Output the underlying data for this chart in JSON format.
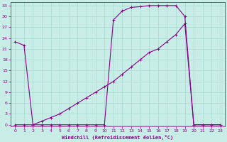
{
  "xlabel": "Windchill (Refroidissement éolien,°C)",
  "bg_color": "#c8ece6",
  "grid_color": "#a8d8d0",
  "line_color": "#880088",
  "xlim": [
    -0.5,
    23.5
  ],
  "ylim": [
    -0.5,
    34
  ],
  "yticks": [
    0,
    3,
    6,
    9,
    12,
    15,
    18,
    21,
    24,
    27,
    30,
    33
  ],
  "xticks": [
    0,
    1,
    2,
    3,
    4,
    5,
    6,
    7,
    8,
    9,
    10,
    11,
    12,
    13,
    14,
    15,
    16,
    17,
    18,
    19,
    20,
    21,
    22,
    23
  ],
  "curve1_x": [
    0,
    1,
    2,
    3,
    4,
    5,
    6,
    7,
    8,
    9,
    10,
    11,
    12,
    13,
    14,
    15,
    16,
    17,
    18,
    19,
    20,
    21,
    22,
    23
  ],
  "curve1_y": [
    23,
    22,
    0,
    0,
    0,
    0,
    0,
    0,
    0,
    0,
    0,
    29,
    31.5,
    32.5,
    32.7,
    33,
    33,
    33,
    33,
    30,
    0,
    0,
    0,
    0
  ],
  "curve2_x": [
    0,
    1,
    2,
    3,
    4,
    5,
    6,
    7,
    8,
    9,
    10,
    11,
    12,
    13,
    14,
    15,
    16,
    17,
    18,
    19,
    20,
    21,
    22,
    23
  ],
  "curve2_y": [
    0,
    0,
    0,
    1,
    2,
    3,
    4.5,
    6,
    7.5,
    9,
    10.5,
    12,
    14,
    16,
    18,
    20,
    21,
    23,
    25,
    28,
    0,
    0,
    0,
    0
  ]
}
